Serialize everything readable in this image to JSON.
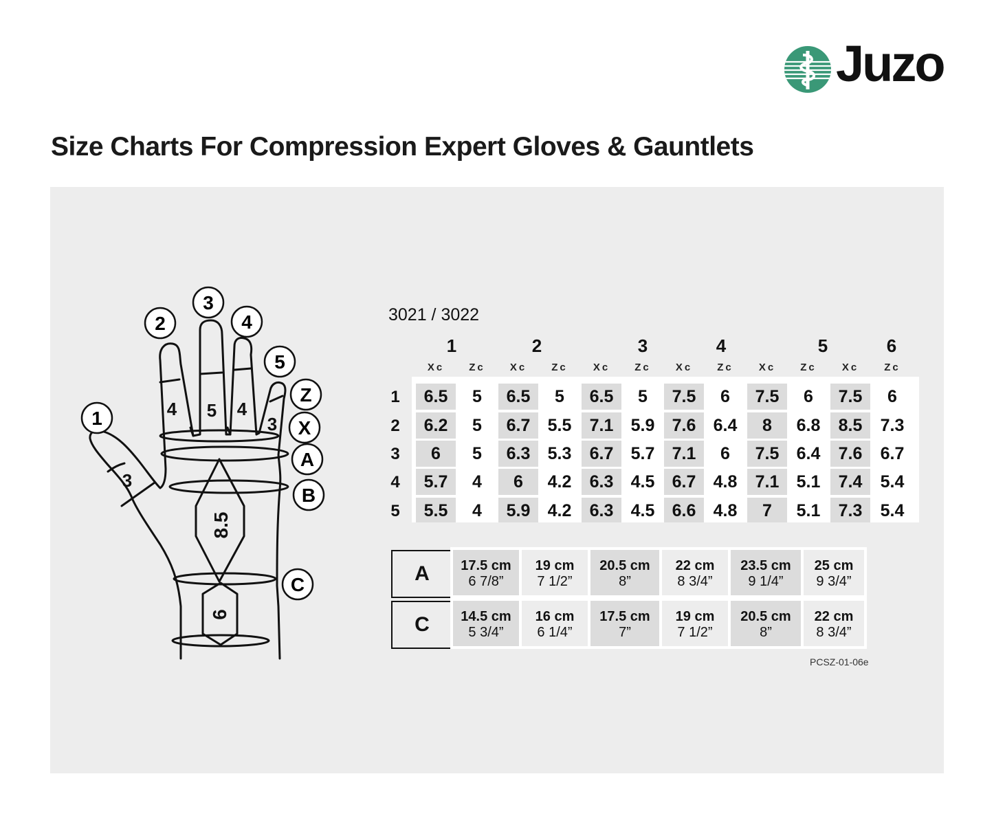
{
  "brand": {
    "name": "Juzo",
    "colors": {
      "logo_green": "#3a9877",
      "panel_bg": "#ededed",
      "cell_dark": "#dcdcdc",
      "text": "#111111"
    }
  },
  "page_title": "Size Charts For Compression Expert Gloves & Gauntlets",
  "diagram": {
    "finger_markers": [
      "1",
      "2",
      "3",
      "4",
      "5"
    ],
    "circumference_markers": [
      "Z",
      "X",
      "A",
      "B",
      "C"
    ],
    "finger_lengths": {
      "thumb": "3",
      "index": "4",
      "middle": "5",
      "ring": "4",
      "little": "3"
    },
    "palm_length": "8.5",
    "wrist_length": "6"
  },
  "size_table": {
    "model_label": "3021 / 3022",
    "size_headers": [
      "1",
      "2",
      "3",
      "4",
      "5",
      "6"
    ],
    "column_headers": [
      "Xc",
      "Zc",
      "Xc",
      "Zc",
      "Xc",
      "Zc",
      "Xc",
      "Zc",
      "Xc",
      "Zc",
      "Xc",
      "Zc"
    ],
    "row_labels": [
      "1",
      "2",
      "3",
      "4",
      "5"
    ],
    "rows": [
      [
        "6.5",
        "5",
        "6.5",
        "5",
        "6.5",
        "5",
        "7.5",
        "6",
        "7.5",
        "6",
        "7.5",
        "6"
      ],
      [
        "6.2",
        "5",
        "6.7",
        "5.5",
        "7.1",
        "5.9",
        "7.6",
        "6.4",
        "8",
        "6.8",
        "8.5",
        "7.3"
      ],
      [
        "6",
        "5",
        "6.3",
        "5.3",
        "6.7",
        "5.7",
        "7.1",
        "6",
        "7.5",
        "6.4",
        "7.6",
        "6.7"
      ],
      [
        "5.7",
        "4",
        "6",
        "4.2",
        "6.3",
        "4.5",
        "6.7",
        "4.8",
        "7.1",
        "5.1",
        "7.4",
        "5.4"
      ],
      [
        "5.5",
        "4",
        "5.9",
        "4.2",
        "6.3",
        "4.5",
        "6.6",
        "4.8",
        "7",
        "5.1",
        "7.3",
        "5.4"
      ]
    ]
  },
  "circumference_table": {
    "rows": [
      {
        "label": "A",
        "values": [
          {
            "cm": "17.5 cm",
            "inch": "6 7/8”"
          },
          {
            "cm": "19 cm",
            "inch": "7 1/2”"
          },
          {
            "cm": "20.5 cm",
            "inch": "8”"
          },
          {
            "cm": "22 cm",
            "inch": "8 3/4”"
          },
          {
            "cm": "23.5 cm",
            "inch": "9 1/4”"
          },
          {
            "cm": "25 cm",
            "inch": "9 3/4”"
          }
        ]
      },
      {
        "label": "C",
        "values": [
          {
            "cm": "14.5 cm",
            "inch": "5 3/4”"
          },
          {
            "cm": "16 cm",
            "inch": "6 1/4”"
          },
          {
            "cm": "17.5 cm",
            "inch": "7”"
          },
          {
            "cm": "19 cm",
            "inch": "7 1/2”"
          },
          {
            "cm": "20.5 cm",
            "inch": "8”"
          },
          {
            "cm": "22 cm",
            "inch": "8 3/4”"
          }
        ]
      }
    ]
  },
  "document_code": "PCSZ-01-06e"
}
